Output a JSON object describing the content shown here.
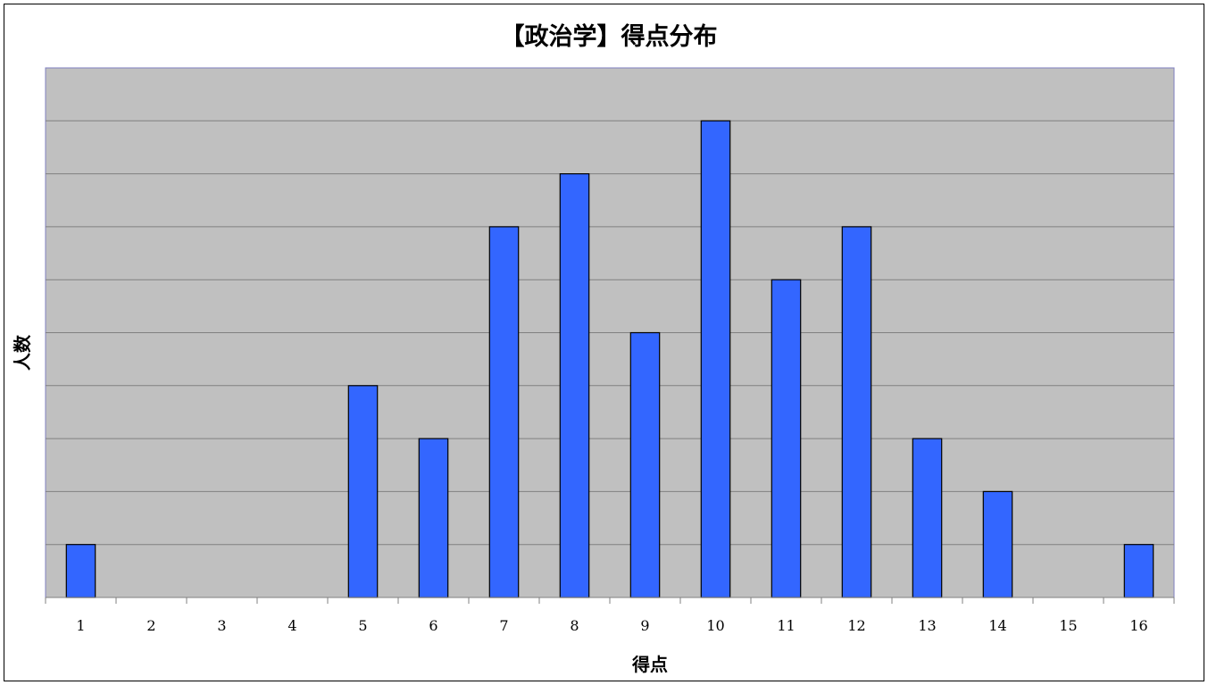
{
  "chart_data": {
    "type": "bar",
    "title": "【政治学】得点分布",
    "xlabel": "得点",
    "ylabel": "人数",
    "categories": [
      "1",
      "2",
      "3",
      "4",
      "5",
      "6",
      "7",
      "8",
      "9",
      "10",
      "11",
      "12",
      "13",
      "14",
      "15",
      "16"
    ],
    "values": [
      1,
      0,
      0,
      0,
      4,
      3,
      7,
      8,
      5,
      9,
      6,
      7,
      3,
      2,
      0,
      1
    ],
    "ylim": [
      0,
      10
    ],
    "y_tick_labels_shown": false,
    "grid": true,
    "legend": "none",
    "colors": {
      "bar_fill": "#3366FF",
      "bar_stroke": "#000000",
      "plot_background": "#C0C0C0",
      "plot_border": "#8080C0",
      "gridline": "#808080"
    }
  }
}
